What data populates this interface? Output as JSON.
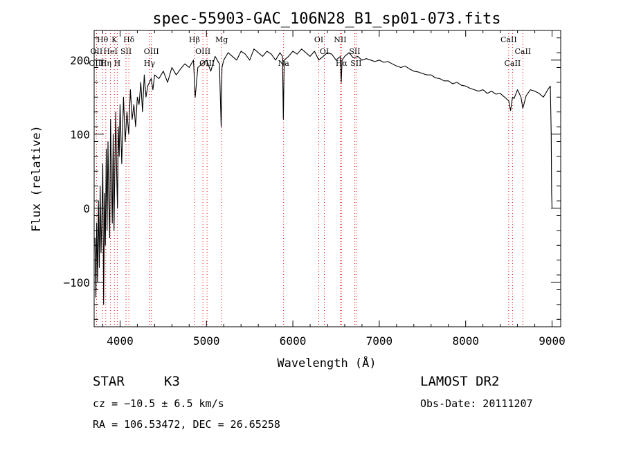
{
  "chart_data": {
    "type": "line",
    "title": "spec-55903-GAC_106N28_B1_sp01-073.fits",
    "xlabel": "Wavelength (Å)",
    "ylabel": "Flux (relative)",
    "xlim": [
      3700,
      9100
    ],
    "ylim": [
      -160,
      240
    ],
    "xticks": [
      {
        "value": 4000,
        "label": "4000"
      },
      {
        "value": 5000,
        "label": "5000"
      },
      {
        "value": 6000,
        "label": "6000"
      },
      {
        "value": 7000,
        "label": "7000"
      },
      {
        "value": 8000,
        "label": "8000"
      },
      {
        "value": 9000,
        "label": "9000"
      }
    ],
    "yticks": [
      {
        "value": -100,
        "label": "−100"
      },
      {
        "value": 0,
        "label": "0"
      },
      {
        "value": 100,
        "label": "100"
      },
      {
        "value": 200,
        "label": "200"
      }
    ],
    "series": [
      {
        "color": "#000000",
        "x": [
          3710,
          3720,
          3730,
          3740,
          3750,
          3760,
          3770,
          3780,
          3790,
          3800,
          3810,
          3820,
          3830,
          3840,
          3850,
          3860,
          3870,
          3880,
          3890,
          3900,
          3910,
          3920,
          3930,
          3940,
          3950,
          3960,
          3970,
          3980,
          3990,
          4000,
          4020,
          4040,
          4060,
          4080,
          4100,
          4120,
          4140,
          4160,
          4180,
          4200,
          4220,
          4240,
          4260,
          4280,
          4300,
          4320,
          4340,
          4360,
          4380,
          4400,
          4450,
          4500,
          4550,
          4600,
          4650,
          4700,
          4750,
          4800,
          4850,
          4870,
          4900,
          4950,
          5000,
          5050,
          5100,
          5150,
          5170,
          5180,
          5200,
          5250,
          5300,
          5350,
          5400,
          5450,
          5500,
          5550,
          5600,
          5650,
          5700,
          5750,
          5800,
          5850,
          5880,
          5890,
          5900,
          5950,
          6000,
          6050,
          6100,
          6150,
          6200,
          6250,
          6300,
          6350,
          6400,
          6450,
          6500,
          6550,
          6560,
          6570,
          6600,
          6650,
          6700,
          6750,
          6800,
          6850,
          6900,
          6950,
          7000,
          7050,
          7100,
          7150,
          7200,
          7250,
          7300,
          7350,
          7400,
          7450,
          7500,
          7550,
          7600,
          7650,
          7700,
          7750,
          7800,
          7850,
          7900,
          7950,
          8000,
          8050,
          8100,
          8150,
          8200,
          8250,
          8300,
          8350,
          8400,
          8450,
          8498,
          8520,
          8542,
          8560,
          8600,
          8640,
          8662,
          8700,
          8750,
          8800,
          8850,
          8900,
          8950,
          8980,
          8990,
          8995,
          9000
        ],
        "y": [
          -40,
          -120,
          -20,
          -100,
          10,
          -80,
          30,
          -60,
          -10,
          60,
          -130,
          20,
          -50,
          80,
          -30,
          90,
          10,
          -40,
          120,
          40,
          -20,
          100,
          -30,
          60,
          130,
          50,
          0,
          110,
          70,
          140,
          60,
          150,
          90,
          130,
          100,
          160,
          120,
          140,
          110,
          150,
          140,
          170,
          130,
          180,
          150,
          165,
          170,
          175,
          160,
          180,
          175,
          185,
          170,
          190,
          180,
          188,
          195,
          190,
          200,
          150,
          190,
          195,
          200,
          185,
          205,
          195,
          110,
          190,
          200,
          210,
          205,
          200,
          212,
          208,
          200,
          215,
          210,
          205,
          212,
          208,
          200,
          210,
          205,
          120,
          200,
          205,
          212,
          208,
          215,
          210,
          205,
          212,
          200,
          205,
          210,
          208,
          200,
          205,
          170,
          200,
          205,
          210,
          203,
          205,
          200,
          202,
          200,
          198,
          200,
          197,
          198,
          195,
          192,
          190,
          192,
          188,
          185,
          184,
          182,
          180,
          180,
          176,
          175,
          172,
          172,
          168,
          170,
          166,
          165,
          162,
          160,
          158,
          160,
          155,
          158,
          154,
          155,
          150,
          145,
          132,
          150,
          148,
          160,
          150,
          135,
          152,
          160,
          158,
          155,
          150,
          160,
          165,
          100,
          20,
          0
        ]
      }
    ],
    "lines": [
      {
        "name": "Hθ",
        "wave": 3797,
        "level": 1
      },
      {
        "name": "K",
        "wave": 3934,
        "level": 1
      },
      {
        "name": "Hδ",
        "wave": 4102,
        "level": 1
      },
      {
        "name": "Hβ",
        "wave": 4861,
        "level": 1
      },
      {
        "name": "Mg",
        "wave": 5175,
        "level": 1
      },
      {
        "name": "OI",
        "wave": 6300,
        "level": 1
      },
      {
        "name": "NII",
        "wave": 6548,
        "level": 1
      },
      {
        "name": "CaII",
        "wave": 8498,
        "level": 1
      },
      {
        "name": "OII",
        "wave": 3727,
        "level": 2
      },
      {
        "name": "HeI",
        "wave": 3889,
        "level": 2
      },
      {
        "name": "SII",
        "wave": 4069,
        "level": 2
      },
      {
        "name": "OIII",
        "wave": 4363,
        "level": 2
      },
      {
        "name": "OIII",
        "wave": 4959,
        "level": 2
      },
      {
        "name": "OI",
        "wave": 6364,
        "level": 2
      },
      {
        "name": "SII",
        "wave": 6716,
        "level": 2
      },
      {
        "name": "CaII",
        "wave": 8662,
        "level": 2
      },
      {
        "name": "OIII",
        "wave": 3727,
        "level": 3
      },
      {
        "name": "Hη",
        "wave": 3835,
        "level": 3
      },
      {
        "name": "H",
        "wave": 3968,
        "level": 3
      },
      {
        "name": "Hγ",
        "wave": 4340,
        "level": 3
      },
      {
        "name": "OIII",
        "wave": 5007,
        "level": 3
      },
      {
        "name": "Na",
        "wave": 5893,
        "level": 3
      },
      {
        "name": "Hα",
        "wave": 6563,
        "level": 3
      },
      {
        "name": "SII",
        "wave": 6731,
        "level": 3
      },
      {
        "name": "CaII",
        "wave": 8542,
        "level": 3
      }
    ]
  },
  "info": {
    "class": "STAR",
    "subclass": "K3",
    "velocity": "cz = −10.5 ± 6.5 km/s",
    "coords": "RA = 106.53472, DEC =  26.65258",
    "survey": "LAMOST DR2",
    "obs_date": "Obs-Date: 20111207"
  },
  "colors": {
    "spectrum": "#000000",
    "line_markers": "#ff0000",
    "frame": "#000000"
  }
}
